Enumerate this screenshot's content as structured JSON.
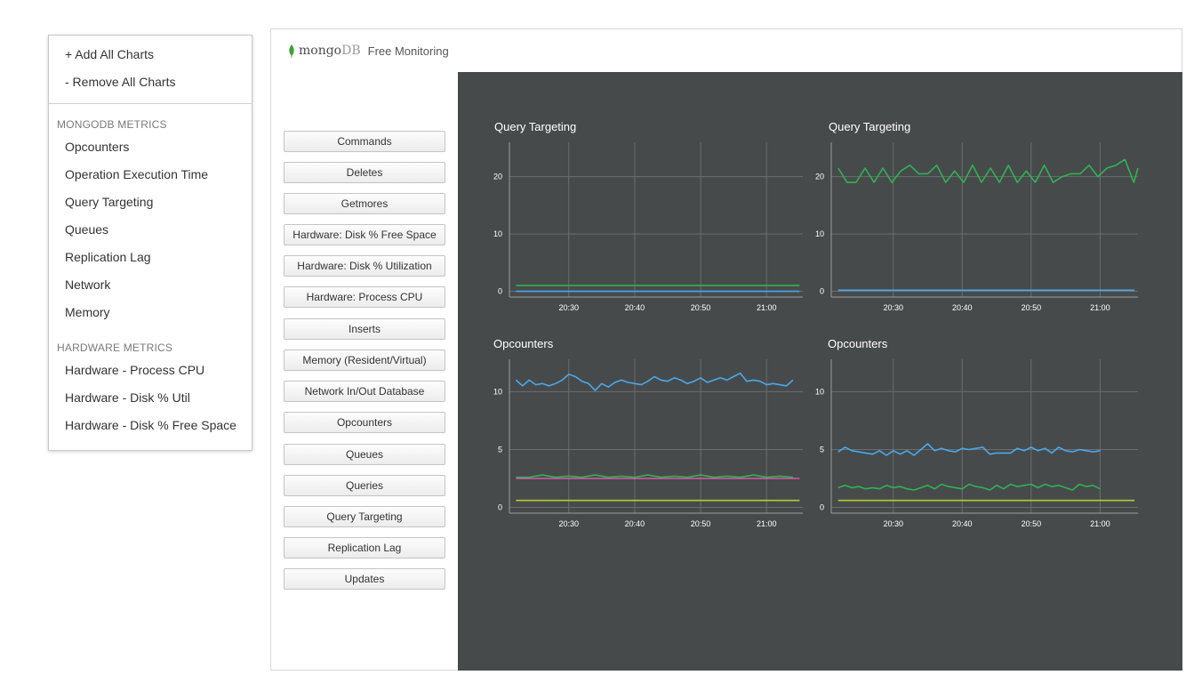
{
  "menu": {
    "add_all": "+ Add All Charts",
    "remove_all": "- Remove All Charts",
    "mongodb_section": "MONGODB METRICS",
    "mongodb_items": [
      "Opcounters",
      "Operation Execution Time",
      "Query Targeting",
      "Queues",
      "Replication Lag",
      "Network",
      "Memory"
    ],
    "hardware_section": "HARDWARE METRICS",
    "hardware_items": [
      "Hardware - Process CPU",
      "Hardware - Disk % Util",
      "Hardware - Disk % Free Space"
    ]
  },
  "header": {
    "brand": "mongo",
    "brand_suffix": "DB",
    "title": "Free Monitoring",
    "logo_icon": "mongodb-leaf-icon"
  },
  "buttons": [
    "Commands",
    "Deletes",
    "Getmores",
    "Hardware: Disk % Free Space",
    "Hardware: Disk % Utilization",
    "Hardware: Process CPU",
    "Inserts",
    "Memory (Resident/Virtual)",
    "Network In/Out Database",
    "Opcounters",
    "Queues",
    "Queries",
    "Query Targeting",
    "Replication Lag",
    "Updates"
  ],
  "colors": {
    "panel_bg": "#474a4b",
    "grid": "#6a6d6e",
    "text": "#ffffff",
    "blue": "#4aa8e8",
    "green": "#2eb352",
    "pink": "#d45aa8",
    "yellow": "#b7c934"
  },
  "chart_data": [
    {
      "type": "line",
      "title": "Query Targeting",
      "x_ticks": [
        "20:30",
        "20:40",
        "20:50",
        "21:00"
      ],
      "x_tick_times": [
        8,
        18,
        28,
        38
      ],
      "y_ticks": [
        0,
        10,
        20
      ],
      "ylim": [
        -1,
        26
      ],
      "xlim": [
        -1,
        43.5
      ],
      "grid": true,
      "series": [
        {
          "color": "blue",
          "values": [
            [
              0,
              0
            ],
            [
              43,
              0
            ]
          ]
        },
        {
          "color": "green",
          "values": [
            [
              0,
              1
            ],
            [
              43,
              1
            ]
          ]
        }
      ]
    },
    {
      "type": "line",
      "title": "Query Targeting",
      "x_ticks": [
        "20:30",
        "20:40",
        "20:50",
        "21:00"
      ],
      "x_tick_times": [
        8,
        18,
        28,
        38
      ],
      "y_ticks": [
        0,
        10,
        20
      ],
      "ylim": [
        -1,
        26
      ],
      "xlim": [
        -1,
        43.5
      ],
      "grid": true,
      "series": [
        {
          "color": "blue",
          "values": [
            [
              0,
              0.2
            ],
            [
              43,
              0.2
            ]
          ]
        },
        {
          "color": "green",
          "values": [
            [
              0,
              21.5
            ],
            [
              1.3,
              19
            ],
            [
              2.6,
              19
            ],
            [
              3.9,
              21.5
            ],
            [
              5.2,
              19
            ],
            [
              6.5,
              21.5
            ],
            [
              7.8,
              19
            ],
            [
              9.1,
              21
            ],
            [
              10.4,
              22
            ],
            [
              11.7,
              20.5
            ],
            [
              13,
              20.5
            ],
            [
              14.3,
              22
            ],
            [
              15.6,
              19
            ],
            [
              16.9,
              21
            ],
            [
              18.2,
              19
            ],
            [
              19.5,
              22
            ],
            [
              20.8,
              19
            ],
            [
              22.1,
              21.5
            ],
            [
              23.4,
              19
            ],
            [
              24.7,
              22
            ],
            [
              26,
              19
            ],
            [
              27.3,
              21
            ],
            [
              28.6,
              19
            ],
            [
              29.9,
              22
            ],
            [
              31.2,
              19
            ],
            [
              32.5,
              20
            ],
            [
              33.8,
              20.5
            ],
            [
              35.1,
              20.5
            ],
            [
              36.4,
              22
            ],
            [
              37.7,
              20
            ],
            [
              39,
              21.5
            ],
            [
              40.3,
              22
            ],
            [
              41.6,
              23
            ],
            [
              42.9,
              19
            ],
            [
              43.5,
              21.5
            ]
          ]
        }
      ]
    },
    {
      "type": "line",
      "title": "Opcounters",
      "x_ticks": [
        "20:30",
        "20:40",
        "20:50",
        "21:00"
      ],
      "x_tick_times": [
        8,
        18,
        28,
        38
      ],
      "y_ticks": [
        0,
        5,
        10
      ],
      "ylim": [
        -0.5,
        12.8
      ],
      "xlim": [
        -1,
        43.5
      ],
      "grid": true,
      "series": [
        {
          "color": "blue",
          "values": [
            [
              0,
              11
            ],
            [
              1,
              10.5
            ],
            [
              2,
              11
            ],
            [
              3,
              10.6
            ],
            [
              4,
              10.7
            ],
            [
              5,
              10.5
            ],
            [
              6,
              10.7
            ],
            [
              7,
              11
            ],
            [
              8,
              11.5
            ],
            [
              9,
              11.3
            ],
            [
              10,
              10.9
            ],
            [
              11,
              10.7
            ],
            [
              12,
              10.1
            ],
            [
              13,
              10.7
            ],
            [
              14,
              10.4
            ],
            [
              15,
              10.8
            ],
            [
              16,
              11
            ],
            [
              17,
              10.8
            ],
            [
              18,
              10.7
            ],
            [
              19,
              10.6
            ],
            [
              20,
              10.9
            ],
            [
              21,
              11.3
            ],
            [
              22,
              11
            ],
            [
              23,
              10.9
            ],
            [
              24,
              11.2
            ],
            [
              25,
              11
            ],
            [
              26,
              10.7
            ],
            [
              27,
              10.9
            ],
            [
              28,
              11.2
            ],
            [
              29,
              10.8
            ],
            [
              30,
              11
            ],
            [
              31,
              11.2
            ],
            [
              32,
              11
            ],
            [
              33,
              11.3
            ],
            [
              34,
              11.6
            ],
            [
              35,
              10.9
            ],
            [
              36,
              11
            ],
            [
              37,
              10.9
            ],
            [
              38,
              10.6
            ],
            [
              39,
              10.7
            ],
            [
              40,
              10.6
            ],
            [
              41,
              10.5
            ],
            [
              42,
              11
            ]
          ]
        },
        {
          "color": "green",
          "values": [
            [
              0,
              2.6
            ],
            [
              2,
              2.6
            ],
            [
              4,
              2.8
            ],
            [
              6,
              2.6
            ],
            [
              8,
              2.7
            ],
            [
              10,
              2.6
            ],
            [
              12,
              2.8
            ],
            [
              14,
              2.6
            ],
            [
              16,
              2.7
            ],
            [
              18,
              2.6
            ],
            [
              20,
              2.8
            ],
            [
              22,
              2.6
            ],
            [
              24,
              2.7
            ],
            [
              26,
              2.6
            ],
            [
              28,
              2.8
            ],
            [
              30,
              2.6
            ],
            [
              32,
              2.7
            ],
            [
              34,
              2.6
            ],
            [
              36,
              2.8
            ],
            [
              38,
              2.6
            ],
            [
              40,
              2.7
            ],
            [
              42,
              2.6
            ]
          ]
        },
        {
          "color": "pink",
          "values": [
            [
              0,
              2.5
            ],
            [
              43,
              2.5
            ]
          ]
        },
        {
          "color": "yellow",
          "values": [
            [
              0,
              0.6
            ],
            [
              43,
              0.6
            ]
          ]
        }
      ]
    },
    {
      "type": "line",
      "title": "Opcounters",
      "x_ticks": [
        "20:30",
        "20:40",
        "20:50",
        "21:00"
      ],
      "x_tick_times": [
        8,
        18,
        28,
        38
      ],
      "y_ticks": [
        0,
        5,
        10
      ],
      "ylim": [
        -0.5,
        12.8
      ],
      "xlim": [
        -1,
        43.5
      ],
      "grid": true,
      "series": [
        {
          "color": "blue",
          "values": [
            [
              0,
              4.8
            ],
            [
              1,
              5.2
            ],
            [
              2,
              4.9
            ],
            [
              3,
              4.8
            ],
            [
              4,
              4.7
            ],
            [
              5,
              4.6
            ],
            [
              6,
              4.9
            ],
            [
              7,
              4.5
            ],
            [
              8,
              4.9
            ],
            [
              9,
              4.6
            ],
            [
              10,
              4.9
            ],
            [
              11,
              4.5
            ],
            [
              12,
              5
            ],
            [
              13,
              5.5
            ],
            [
              14,
              4.9
            ],
            [
              15,
              5.1
            ],
            [
              16,
              4.9
            ],
            [
              17,
              4.8
            ],
            [
              18,
              5.1
            ],
            [
              19,
              5
            ],
            [
              20,
              5.1
            ],
            [
              21,
              5.2
            ],
            [
              22,
              4.6
            ],
            [
              23,
              4.7
            ],
            [
              24,
              4.7
            ],
            [
              25,
              4.7
            ],
            [
              26,
              5.1
            ],
            [
              27,
              4.9
            ],
            [
              28,
              5.2
            ],
            [
              29,
              4.9
            ],
            [
              30,
              5.1
            ],
            [
              31,
              4.7
            ],
            [
              32,
              5.2
            ],
            [
              33,
              4.9
            ],
            [
              34,
              4.8
            ],
            [
              35,
              5
            ],
            [
              36,
              4.9
            ],
            [
              37,
              4.8
            ],
            [
              38,
              4.9
            ]
          ]
        },
        {
          "color": "green",
          "values": [
            [
              0,
              1.7
            ],
            [
              1,
              1.9
            ],
            [
              2,
              1.7
            ],
            [
              3,
              1.8
            ],
            [
              4,
              1.6
            ],
            [
              5,
              1.7
            ],
            [
              6,
              1.6
            ],
            [
              7,
              1.9
            ],
            [
              8,
              1.7
            ],
            [
              9,
              1.8
            ],
            [
              10,
              1.6
            ],
            [
              11,
              1.5
            ],
            [
              12,
              1.7
            ],
            [
              13,
              1.9
            ],
            [
              14,
              1.6
            ],
            [
              15,
              2
            ],
            [
              16,
              1.8
            ],
            [
              17,
              1.7
            ],
            [
              18,
              1.6
            ],
            [
              19,
              2
            ],
            [
              20,
              1.8
            ],
            [
              21,
              1.7
            ],
            [
              22,
              1.5
            ],
            [
              23,
              1.9
            ],
            [
              24,
              1.6
            ],
            [
              25,
              2
            ],
            [
              26,
              1.8
            ],
            [
              27,
              1.9
            ],
            [
              28,
              2
            ],
            [
              29,
              1.7
            ],
            [
              30,
              2
            ],
            [
              31,
              1.8
            ],
            [
              32,
              1.9
            ],
            [
              33,
              1.7
            ],
            [
              34,
              1.5
            ],
            [
              35,
              2
            ],
            [
              36,
              1.8
            ],
            [
              37,
              1.9
            ],
            [
              38,
              1.6
            ]
          ]
        },
        {
          "color": "yellow",
          "values": [
            [
              0,
              0.6
            ],
            [
              43,
              0.6
            ]
          ]
        }
      ]
    }
  ]
}
